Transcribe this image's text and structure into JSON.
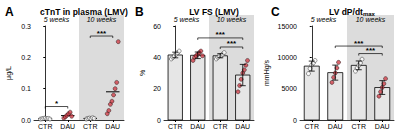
{
  "chart_data": [
    {
      "type": "scatter",
      "panel": "A",
      "title": "cTnT in plasma (LMV)",
      "y_label": "μg/L",
      "groups": [
        "5 weeks",
        "10 weeks"
      ],
      "categories": [
        "CTR",
        "DAU",
        "CTR",
        "DAU"
      ],
      "values": [
        0.005,
        0.014,
        0.005,
        0.09
      ],
      "points": [
        [
          0.003,
          0.004,
          0.005,
          0.006,
          0.004,
          0.005,
          0.003
        ],
        [
          0.006,
          0.01,
          0.015,
          0.02,
          0.025,
          0.012
        ],
        [
          0.003,
          0.005,
          0.006,
          0.004,
          0.007,
          0.005
        ],
        [
          0.02,
          0.03,
          0.05,
          0.06,
          0.08,
          0.1,
          0.12,
          0.25
        ]
      ],
      "colors": [
        "#ffffff",
        "#d0404a",
        "#ffffff",
        "#d0404a"
      ],
      "ylim": [
        0,
        0.3
      ],
      "yticks": [
        {
          "value": 0,
          "label": "0.0"
        },
        0.1,
        0.2,
        0.3
      ],
      "annotations": [
        {
          "text": "*",
          "from": 0,
          "to": 1
        },
        {
          "text": "***",
          "from": 2,
          "to": 3
        }
      ]
    },
    {
      "type": "bar",
      "panel": "B",
      "title": "LV FS (LMV)",
      "y_label": "%",
      "groups": [
        "5 weeks",
        "10 weeks"
      ],
      "categories": [
        "CTR",
        "DAU",
        "CTR",
        "DAU"
      ],
      "values": [
        41.5,
        41.3,
        41,
        28.7
      ],
      "errors": [
        1.8,
        2.1,
        1.3,
        6.8
      ],
      "points": [
        [
          39,
          40,
          41,
          42,
          43,
          44
        ],
        [
          38,
          40,
          41,
          42,
          43,
          44,
          41
        ],
        [
          39,
          40,
          41,
          41,
          42,
          43
        ],
        [
          18,
          22,
          26,
          30,
          32,
          35,
          38
        ]
      ],
      "color": "#e6e6e6",
      "colors": [
        "#ffffff",
        "#d0404a",
        "#ffffff",
        "#d0404a"
      ],
      "ylim": [
        0,
        60
      ],
      "yticks": [
        0,
        20,
        40,
        60
      ],
      "annotations": [
        {
          "text": "***",
          "from": 2,
          "to": 3
        },
        {
          "text": "***",
          "from": 1,
          "to": 3
        }
      ]
    },
    {
      "type": "bar",
      "panel": "C",
      "title": "LV dP/dt",
      "title_sub": "max",
      "y_label": "mmHg/s",
      "groups": [
        "5 weeks",
        "10 weeks"
      ],
      "categories": [
        "CTR",
        "DAU",
        "CTR",
        "DAU"
      ],
      "values": [
        8600,
        7560,
        8720,
        5180
      ],
      "errors": [
        800,
        1200,
        700,
        1100
      ],
      "points": [
        [
          7400,
          8200,
          8800,
          9100,
          9500
        ],
        [
          6000,
          6800,
          7500,
          8300,
          9200
        ],
        [
          7800,
          8300,
          8700,
          9100,
          9700
        ],
        [
          3800,
          4500,
          5200,
          5800,
          6600
        ]
      ],
      "color": "#e6e6e6",
      "colors": [
        "#ffffff",
        "#d0404a",
        "#ffffff",
        "#d0404a"
      ],
      "ylim": [
        0,
        15000
      ],
      "yticks": [
        0,
        5000,
        10000,
        15000
      ],
      "annotations": [
        {
          "text": "***",
          "from": 2,
          "to": 3
        },
        {
          "text": "***",
          "from": 1,
          "to": 3
        }
      ]
    }
  ]
}
